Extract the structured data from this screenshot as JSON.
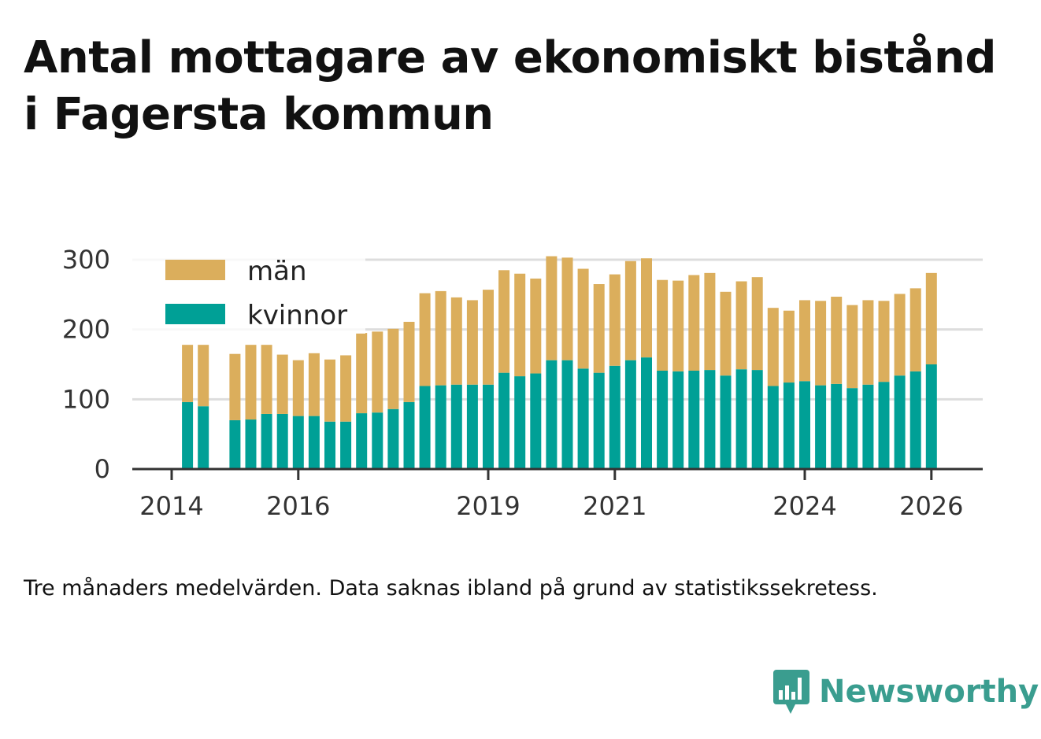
{
  "title": "Antal mottagare av ekonomiskt bistånd i Fagersta kommun",
  "footnote": "Tre månaders medelvärden. Data saknas ibland på grund av statistikssekretess.",
  "brand": {
    "name": "Newsworthy",
    "color": "#3a9d8f"
  },
  "chart_data": {
    "type": "bar",
    "stacked": true,
    "ylim": [
      0,
      300
    ],
    "yticks": [
      0,
      100,
      200,
      300
    ],
    "xticks": [
      {
        "label": "2014",
        "index": 0
      },
      {
        "label": "2016",
        "index": 8
      },
      {
        "label": "2019",
        "index": 20
      },
      {
        "label": "2021",
        "index": 28
      },
      {
        "label": "2024",
        "index": 40
      },
      {
        "label": "2026",
        "index": 48
      }
    ],
    "legend": {
      "placement": "top-left"
    },
    "series": [
      {
        "name": "kvinnor",
        "color": "#00a096",
        "values": [
          null,
          96,
          90,
          null,
          70,
          71,
          79,
          79,
          76,
          76,
          68,
          68,
          80,
          81,
          86,
          96,
          119,
          120,
          121,
          121,
          121,
          138,
          133,
          137,
          156,
          156,
          144,
          138,
          148,
          156,
          160,
          141,
          140,
          141,
          142,
          134,
          143,
          142,
          119,
          124,
          126,
          120,
          122,
          116,
          121,
          125,
          134,
          140,
          150
        ]
      },
      {
        "name": "män",
        "color": "#dbae5c",
        "values": [
          null,
          82,
          88,
          null,
          95,
          107,
          99,
          85,
          80,
          90,
          89,
          95,
          115,
          116,
          115,
          115,
          133,
          135,
          125,
          121,
          136,
          147,
          147,
          136,
          149,
          147,
          143,
          127,
          131,
          142,
          142,
          130,
          130,
          137,
          139,
          120,
          126,
          133,
          112,
          103,
          116,
          121,
          125,
          119,
          121,
          116,
          117,
          119,
          131
        ]
      }
    ]
  }
}
